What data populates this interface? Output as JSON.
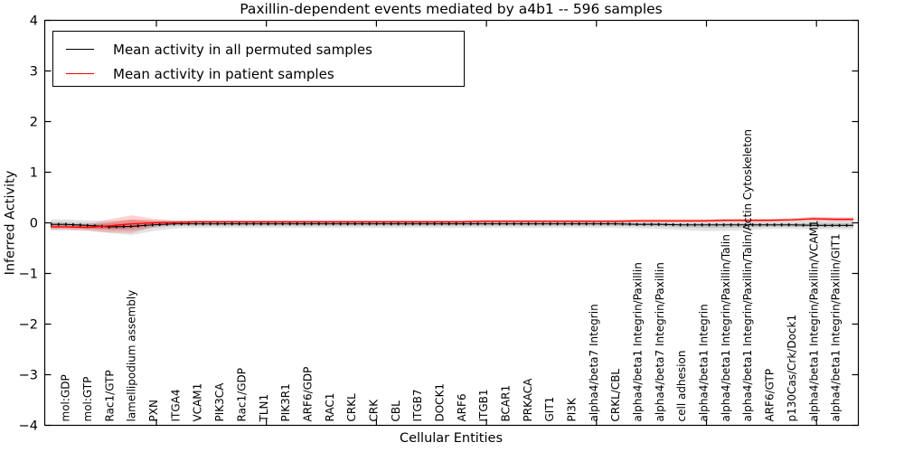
{
  "chart_data": {
    "type": "line",
    "title": "Paxillin-dependent events mediated by a4b1 -- 596 samples",
    "xlabel": "Cellular Entities",
    "ylabel": "Inferred Activity",
    "ylim": [
      -4,
      4
    ],
    "grid": false,
    "legend_position": "upper left",
    "y_tick_labels": [
      "4",
      "3",
      "2",
      "1",
      "0",
      "−1",
      "−2",
      "−3",
      "−4"
    ],
    "categories": [
      "mol:GDP",
      "mol:GTP",
      "Rac1/GTP",
      "lamellipodium assembly",
      "PXN",
      "ITGA4",
      "VCAM1",
      "PIK3CA",
      "Rac1/GDP",
      "TLN1",
      "PIK3R1",
      "ARF6/GDP",
      "RAC1",
      "CRKL",
      "CRK",
      "CBL",
      "ITGB7",
      "DOCK1",
      "ARF6",
      "ITGB1",
      "BCAR1",
      "PRKACA",
      "GIT1",
      "PI3K",
      "alpha4/beta7 Integrin",
      "CRKL/CBL",
      "alpha4/beta1 Integrin/Paxillin",
      "alpha4/beta7 Integrin/Paxillin",
      "cell adhesion",
      "alpha4/beta1 Integrin",
      "alpha4/beta1 Integrin/Paxillin/Talin",
      "alpha4/beta1 Integrin/Paxillin/Talin/Actin Cytoskeleton",
      "ARF6/GTP",
      "p130Cas/Crk/Dock1",
      "alpha4/beta1 Integrin/Paxillin/VCAM1",
      "alpha4/beta1 Integrin/Paxillin/GIT1"
    ],
    "legend": [
      {
        "label": "Mean activity in all permuted samples",
        "color": "#000000"
      },
      {
        "label": "Mean activity in patient samples",
        "color": "#ff0000"
      }
    ],
    "series": [
      {
        "name": "Mean activity in all permuted samples",
        "color": "#000000",
        "band_color_rgb": "0,0,0",
        "values": [
          -0.03,
          -0.05,
          -0.08,
          -0.07,
          -0.04,
          -0.02,
          -0.02,
          -0.02,
          -0.02,
          -0.02,
          -0.02,
          -0.02,
          -0.02,
          -0.02,
          -0.02,
          -0.02,
          -0.02,
          -0.02,
          -0.02,
          -0.02,
          -0.02,
          -0.02,
          -0.02,
          -0.02,
          -0.02,
          -0.02,
          -0.03,
          -0.03,
          -0.04,
          -0.04,
          -0.04,
          -0.04,
          -0.04,
          -0.04,
          -0.05,
          -0.05
        ],
        "band_hi": [
          0.07,
          0.05,
          0.04,
          0.06,
          0.05,
          0.04,
          0.04,
          0.04,
          0.04,
          0.04,
          0.04,
          0.04,
          0.04,
          0.04,
          0.04,
          0.04,
          0.04,
          0.04,
          0.04,
          0.04,
          0.04,
          0.04,
          0.04,
          0.04,
          0.04,
          0.04,
          0.04,
          0.04,
          0.04,
          0.04,
          0.04,
          0.04,
          0.04,
          0.04,
          0.05,
          0.05
        ],
        "band_lo": [
          -0.15,
          -0.16,
          -0.2,
          -0.24,
          -0.16,
          -0.11,
          -0.1,
          -0.1,
          -0.1,
          -0.1,
          -0.1,
          -0.1,
          -0.1,
          -0.1,
          -0.1,
          -0.1,
          -0.1,
          -0.1,
          -0.1,
          -0.1,
          -0.1,
          -0.1,
          -0.1,
          -0.1,
          -0.1,
          -0.1,
          -0.11,
          -0.12,
          -0.14,
          -0.16,
          -0.16,
          -0.14,
          -0.12,
          -0.12,
          -0.13,
          -0.13
        ]
      },
      {
        "name": "Mean activity in patient samples",
        "color": "#ff0000",
        "band_color_rgb": "255,0,0",
        "values": [
          -0.08,
          -0.09,
          -0.06,
          -0.02,
          0.0,
          0.01,
          0.02,
          0.02,
          0.02,
          0.02,
          0.02,
          0.02,
          0.02,
          0.02,
          0.02,
          0.02,
          0.02,
          0.02,
          0.02,
          0.03,
          0.03,
          0.03,
          0.03,
          0.03,
          0.03,
          0.03,
          0.04,
          0.04,
          0.04,
          0.04,
          0.05,
          0.05,
          0.05,
          0.06,
          0.08,
          0.07
        ],
        "band_hi": [
          -0.03,
          -0.03,
          0.07,
          0.15,
          0.08,
          0.05,
          0.05,
          0.05,
          0.05,
          0.05,
          0.05,
          0.05,
          0.05,
          0.05,
          0.05,
          0.05,
          0.05,
          0.05,
          0.05,
          0.06,
          0.06,
          0.06,
          0.06,
          0.06,
          0.06,
          0.06,
          0.07,
          0.07,
          0.07,
          0.07,
          0.08,
          0.08,
          0.08,
          0.09,
          0.12,
          0.11
        ],
        "band_lo": [
          -0.13,
          -0.15,
          -0.19,
          -0.2,
          -0.08,
          -0.03,
          -0.01,
          -0.01,
          -0.01,
          -0.01,
          -0.01,
          -0.01,
          -0.01,
          -0.01,
          -0.01,
          -0.01,
          -0.01,
          -0.01,
          -0.01,
          0.0,
          0.0,
          0.0,
          0.0,
          0.0,
          0.0,
          0.0,
          0.01,
          0.01,
          0.01,
          0.01,
          0.02,
          0.02,
          0.02,
          0.03,
          0.04,
          0.03
        ]
      }
    ]
  }
}
